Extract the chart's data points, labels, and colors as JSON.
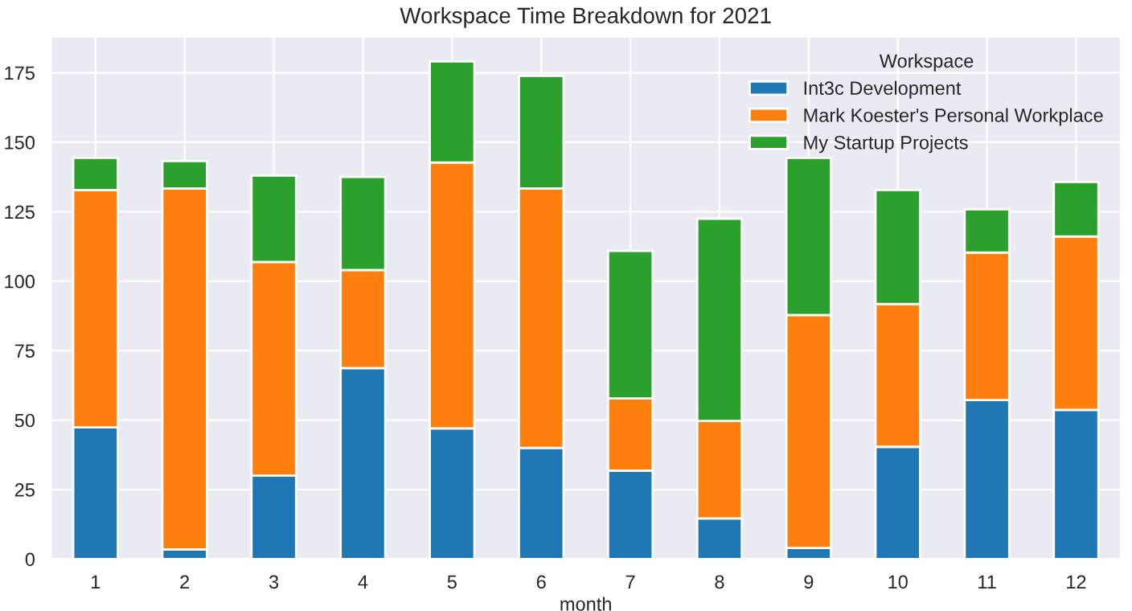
{
  "chart_data": {
    "type": "bar",
    "title": "Workspace Time Breakdown for 2021",
    "xlabel": "month",
    "legend_title": "Workspace",
    "categories": [
      "1",
      "2",
      "3",
      "4",
      "5",
      "6",
      "7",
      "8",
      "9",
      "10",
      "11",
      "12"
    ],
    "stacked": true,
    "series": [
      {
        "name": "Int3c Development",
        "color": "#1f77b4",
        "values": [
          47.4,
          3.5,
          30.0,
          68.7,
          47.0,
          40.0,
          31.8,
          14.6,
          4.0,
          40.4,
          57.2,
          53.7
        ]
      },
      {
        "name": "Mark Koester's Personal Workplace",
        "color": "#ff7f0e",
        "values": [
          85.4,
          129.9,
          76.9,
          35.3,
          95.7,
          93.4,
          26.0,
          35.1,
          83.8,
          51.4,
          53.1,
          62.4
        ]
      },
      {
        "name": "My Startup Projects",
        "color": "#2ca02c",
        "values": [
          11.6,
          9.8,
          31.1,
          33.5,
          36.4,
          40.5,
          53.1,
          72.8,
          56.6,
          41.0,
          15.6,
          19.6
        ]
      }
    ],
    "ylim": [
      0,
      188
    ],
    "yticks": [
      0,
      25,
      50,
      75,
      100,
      125,
      150,
      175
    ],
    "grid": true,
    "legend": "top right"
  }
}
